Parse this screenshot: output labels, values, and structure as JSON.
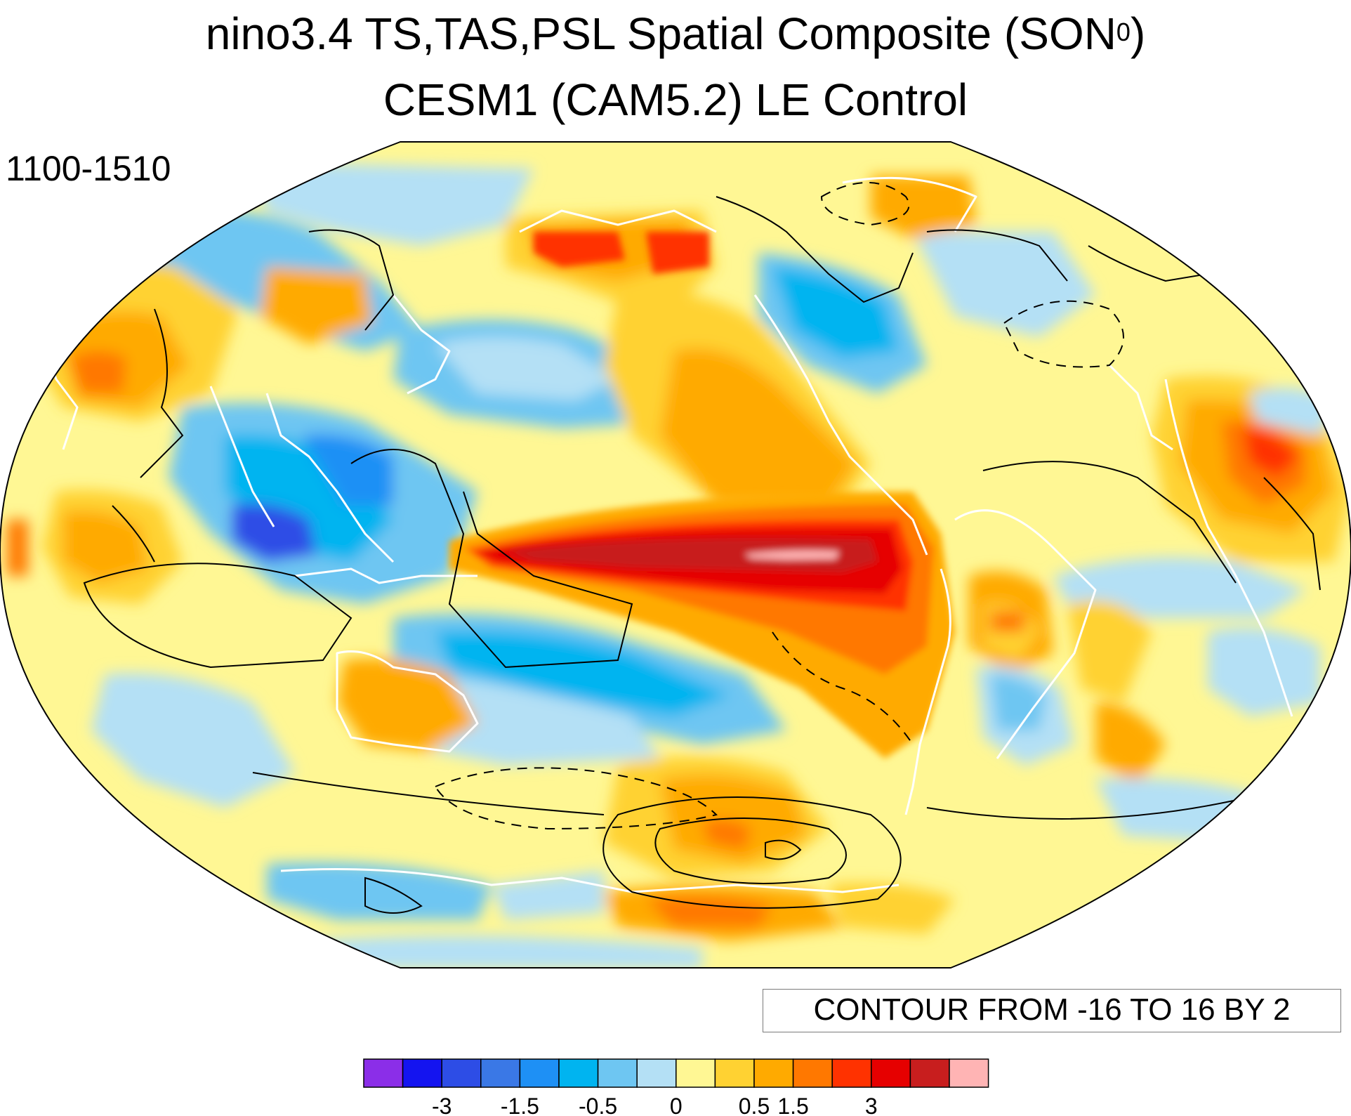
{
  "titles": {
    "line1_main": "nino3.4 TS,TAS,PSL Spatial Composite (SON",
    "line1_sup": "0",
    "line1_close": ")",
    "line2": "CESM1 (CAM5.2) LE Control",
    "period": "1100-1510"
  },
  "contour_info": "CONTOUR FROM -16 TO 16 BY 2",
  "map_data": {
    "projection": "robinson",
    "center_longitude": 200,
    "shaded_fields": [
      "TS",
      "TAS"
    ],
    "contour_field": "PSL",
    "contour_min": -16,
    "contour_max": 16,
    "contour_interval": 2,
    "negative_contours": "dashed"
  },
  "colorbar": {
    "colors": [
      "#8b2ee8",
      "#1414f0",
      "#2d4de6",
      "#3a78e6",
      "#1e90f5",
      "#00b4f0",
      "#6ec6f2",
      "#b4e0f5",
      "#fff794",
      "#ffd232",
      "#ffaa00",
      "#ff7800",
      "#ff3200",
      "#e60000",
      "#c81e1e",
      "#ffb4b4"
    ],
    "labels": [
      {
        "after_box": 2,
        "text": "-3"
      },
      {
        "after_box": 4,
        "text": "-1.5"
      },
      {
        "after_box": 6,
        "text": "-0.5"
      },
      {
        "after_box": 8,
        "text": "0"
      },
      {
        "after_box": 10,
        "text": "0.5"
      },
      {
        "after_box": 11,
        "text": "1.5"
      },
      {
        "after_box": 13,
        "text": "3"
      }
    ]
  }
}
